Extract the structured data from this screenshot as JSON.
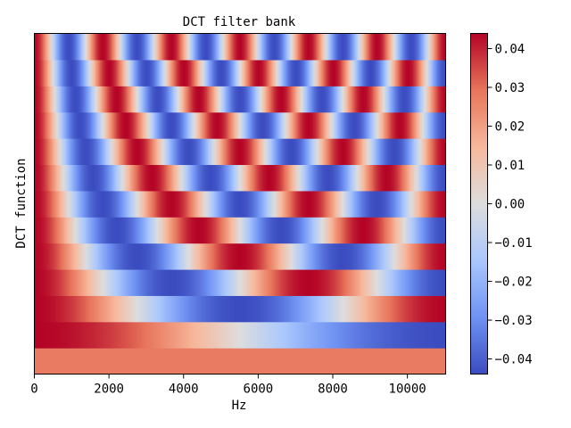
{
  "chart_data": {
    "type": "heatmap",
    "title": "DCT filter bank",
    "xlabel": "Hz",
    "ylabel": "DCT function",
    "x_range": [
      0,
      11025
    ],
    "x_ticks": [
      0,
      2000,
      4000,
      6000,
      8000,
      10000
    ],
    "n_functions": 13,
    "row_order": "function 0 at bottom, function 12 at top",
    "row_amplitude": 0.0439,
    "row_zero_amplitude": 0.0277,
    "value_formula": "value(k, f) = amplitude * cos(pi * k * (2n + 1) / (2N)), n = f / x_max * N, N = 128",
    "colormap": "coolwarm",
    "color_stops": [
      "#3b4cc0",
      "#6f92f3",
      "#aac7fd",
      "#dddddd",
      "#f7b89c",
      "#e7745b",
      "#b40426"
    ],
    "colorbar": {
      "range": [
        -0.0439,
        0.0439
      ],
      "ticks": [
        0.04,
        0.03,
        0.02,
        0.01,
        0.0,
        -0.01,
        -0.02,
        -0.03,
        -0.04
      ],
      "tick_labels": [
        "0.04",
        "0.03",
        "0.02",
        "0.01",
        "0.00",
        "−0.01",
        "−0.02",
        "−0.03",
        "−0.04"
      ]
    },
    "x_tick_labels": [
      "0",
      "2000",
      "4000",
      "6000",
      "8000",
      "10000"
    ],
    "grid": false
  }
}
